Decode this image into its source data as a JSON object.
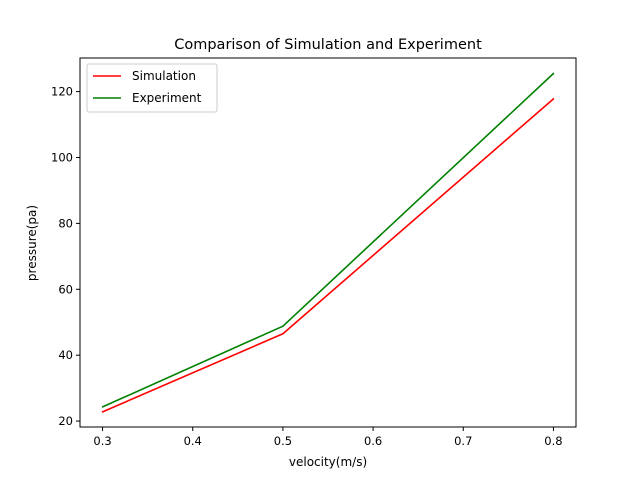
{
  "chart_data": {
    "type": "line",
    "title": "Comparison of Simulation and Experiment",
    "xlabel": "velocity(m/s)",
    "ylabel": "pressure(pa)",
    "x": [
      0.3,
      0.5,
      0.8
    ],
    "series": [
      {
        "name": "Simulation",
        "color": "#ff0000",
        "values": [
          22.8,
          46.5,
          117.8
        ]
      },
      {
        "name": "Experiment",
        "color": "#008000",
        "values": [
          24.3,
          48.8,
          125.5
        ]
      }
    ],
    "xlim": [
      0.275,
      0.825
    ],
    "ylim": [
      18.2,
      130.2
    ],
    "xticks": [
      0.3,
      0.4,
      0.5,
      0.6,
      0.7,
      0.8
    ],
    "xtick_labels": [
      "0.3",
      "0.4",
      "0.5",
      "0.6",
      "0.7",
      "0.8"
    ],
    "yticks": [
      20,
      40,
      60,
      80,
      100,
      120
    ],
    "ytick_labels": [
      "20",
      "40",
      "60",
      "80",
      "100",
      "120"
    ],
    "grid": false,
    "legend_position": "top-left"
  }
}
